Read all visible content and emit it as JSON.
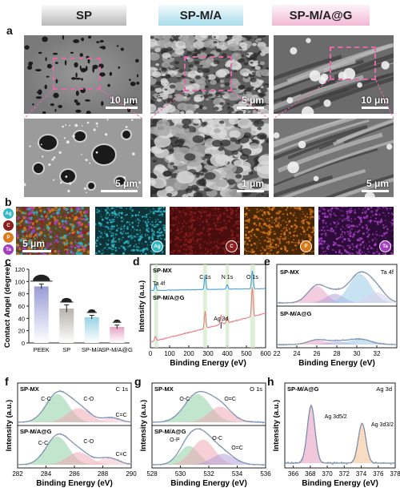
{
  "panel_letters": {
    "a": "a",
    "b": "b",
    "c": "c",
    "d": "d",
    "e": "e",
    "f": "f",
    "g": "g",
    "h": "h"
  },
  "headers": [
    "SP",
    "SP-M/A",
    "SP-M/A@G"
  ],
  "header_colors": [
    "#b9b9b9",
    "#a9dcec",
    "#f2b9d5"
  ],
  "sem_scalebars": {
    "top": [
      "10 μm",
      "5 μm",
      "10 μm"
    ],
    "bottom": [
      "5 μm",
      "1 μm",
      "5 μm"
    ]
  },
  "eds": {
    "legend": [
      "Ag",
      "C",
      "P",
      "Ta"
    ],
    "legend_colors": [
      "#2fb7c6",
      "#8b1e1e",
      "#d97a1d",
      "#a23fbf"
    ],
    "scalebar": "5 μm",
    "maps": [
      {
        "label": "Ag",
        "color": "#2fb7c6"
      },
      {
        "label": "C",
        "color": "#8b1e1e"
      },
      {
        "label": "P",
        "color": "#d97a1d"
      },
      {
        "label": "Ta",
        "color": "#a23fbf"
      }
    ]
  },
  "chart_data": [
    {
      "id": "c",
      "type": "bar",
      "ylabel": "Contact Angel (degree)",
      "categories": [
        "PEEK",
        "SP",
        "SP-M/A",
        "SP-M/A@G"
      ],
      "values": [
        92,
        56,
        42,
        26
      ],
      "errors": [
        4,
        6,
        3,
        3
      ],
      "colors": [
        "#9b9bd6",
        "#b7b2ad",
        "#9ad3e5",
        "#e7a3c6"
      ],
      "ylim": [
        0,
        120
      ],
      "yticks": [
        0,
        20,
        40,
        60,
        80,
        100,
        120
      ]
    },
    {
      "id": "d",
      "type": "line",
      "xlabel": "Binding Energy (eV)",
      "ylabel": "Intensity (a.u.)",
      "xlim": [
        0,
        600
      ],
      "xticks": [
        0,
        100,
        200,
        300,
        400,
        500,
        600
      ],
      "series": [
        {
          "name": "SP-MX",
          "color": "#3a9ad9"
        },
        {
          "name": "SP-M/A@G",
          "color": "#e8787e"
        }
      ],
      "annotations": [
        "Ta 4f",
        "C 1s",
        "N 1s",
        "O 1s",
        "Ag 3d"
      ]
    },
    {
      "id": "e",
      "type": "line",
      "xlabel": "Binding Energy (eV)",
      "xlim": [
        22,
        34
      ],
      "xticks": [
        22,
        24,
        26,
        28,
        30,
        32
      ],
      "series": [
        {
          "name": "SP-MX"
        },
        {
          "name": "SP-M/A@G"
        }
      ],
      "annotations": [
        "Ta 4f"
      ]
    },
    {
      "id": "f",
      "type": "line",
      "xlabel": "Binding Energy (eV)",
      "ylabel": "Intensity (a.u.)",
      "xlim": [
        282,
        290
      ],
      "xticks": [
        282,
        284,
        286,
        288,
        290
      ],
      "series": [
        {
          "name": "SP-MX"
        },
        {
          "name": "SP-M/A@G"
        }
      ],
      "annotations": [
        "C 1s",
        "C-C",
        "C-O",
        "C=C",
        "C-C",
        "C-O",
        "C=C"
      ]
    },
    {
      "id": "g",
      "type": "line",
      "xlabel": "Binding Energy (eV)",
      "ylabel": "Intensity (a.u.)",
      "xlim": [
        528,
        536
      ],
      "xticks": [
        528,
        530,
        532,
        534,
        536
      ],
      "series": [
        {
          "name": "SP-MX"
        },
        {
          "name": "SP-M/A@G"
        }
      ],
      "annotations": [
        "O 1s",
        "O-C",
        "O=C",
        "O-P",
        "O-C",
        "O=C"
      ]
    },
    {
      "id": "h",
      "type": "line",
      "xlabel": "Binding Energy (eV)",
      "ylabel": "Intensity (a.u.)",
      "xlim": [
        365,
        378
      ],
      "xticks": [
        366,
        368,
        370,
        372,
        374,
        376,
        378
      ],
      "series": [
        {
          "name": "SP-M/A@G"
        }
      ],
      "annotations": [
        "Ag 3d",
        "Ag 3d5/2",
        "Ag 3d3/2"
      ]
    }
  ]
}
